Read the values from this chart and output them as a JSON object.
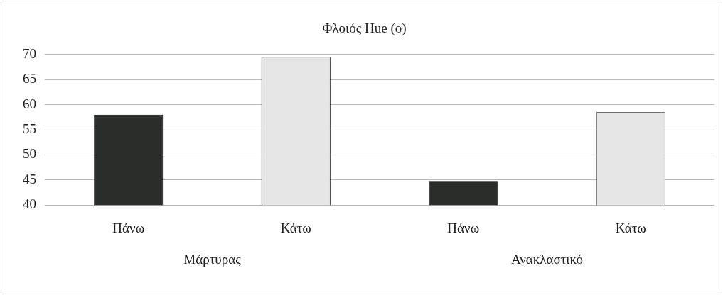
{
  "chart_data": {
    "type": "bar",
    "title": "Φλοιός Hue (o)",
    "categories": [
      "Πάνω",
      "Κάτω",
      "Πάνω",
      "Κάτω"
    ],
    "values": [
      58,
      69.5,
      44.8,
      58.5
    ],
    "colors": [
      "#2a2e2a",
      "#e6e6e6",
      "#2a2e2a",
      "#e6e6e6"
    ],
    "ylim": [
      40,
      70
    ],
    "yticks": [
      40,
      45,
      50,
      55,
      60,
      65,
      70
    ],
    "grid": "y",
    "legend": false,
    "annotations": [
      "Μάρτυρας",
      "Ανακλαστικό"
    ]
  }
}
